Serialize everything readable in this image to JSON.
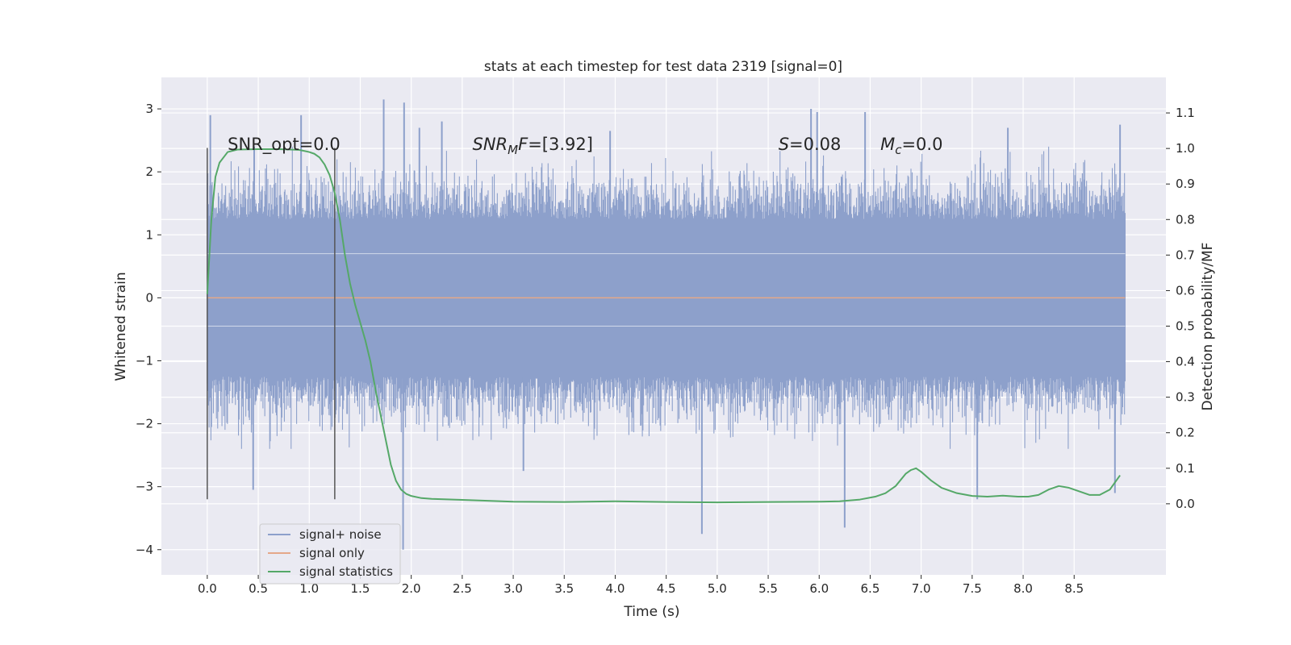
{
  "chart_data": {
    "type": "line",
    "title": "stats at each timestep for test data 2319 [signal=0]",
    "xlabel": "Time (s)",
    "ylabel": "Whitened strain",
    "y2label": "Detection probability/MF",
    "xlim": [
      -0.45,
      9.4
    ],
    "ylim": [
      -4.4,
      3.5
    ],
    "y2lim": [
      -0.2,
      1.2
    ],
    "x_ticks": [
      0.0,
      0.5,
      1.0,
      1.5,
      2.0,
      2.5,
      3.0,
      3.5,
      4.0,
      4.5,
      5.0,
      5.5,
      6.0,
      6.5,
      7.0,
      7.5,
      8.0,
      8.5
    ],
    "x_tick_labels": [
      "0.0",
      "0.5",
      "1.0",
      "1.5",
      "2.0",
      "2.5",
      "3.0",
      "3.5",
      "4.0",
      "4.5",
      "5.0",
      "5.5",
      "6.0",
      "6.5",
      "7.0",
      "7.5",
      "8.0",
      "8.5"
    ],
    "y_ticks": [
      3,
      2,
      1,
      0,
      -1,
      -2,
      -3,
      -4
    ],
    "y_tick_labels": [
      "3",
      "2",
      "1",
      "0",
      "−1",
      "−2",
      "−3",
      "−4"
    ],
    "y2_ticks": [
      1.1,
      1.0,
      0.9,
      0.8,
      0.7,
      0.6,
      0.5,
      0.4,
      0.3,
      0.2,
      0.1,
      0.0
    ],
    "y2_tick_labels": [
      "1.1",
      "1.0",
      "0.9",
      "0.8",
      "0.7",
      "0.6",
      "0.5",
      "0.4",
      "0.3",
      "0.2",
      "0.1",
      "0.0"
    ],
    "grid": true,
    "legend_position": "lower-left",
    "series": [
      {
        "name": "signal+ noise",
        "color": "#8da0cb",
        "x_range": [
          0.0,
          9.0
        ],
        "typical_band": [
          -1.25,
          1.25
        ],
        "peaks": [
          {
            "x": 0.03,
            "y": 2.9
          },
          {
            "x": 0.46,
            "y": 2.4
          },
          {
            "x": 0.45,
            "y": -3.05
          },
          {
            "x": 0.92,
            "y": 2.9
          },
          {
            "x": 1.73,
            "y": 3.15
          },
          {
            "x": 1.92,
            "y": -4.0
          },
          {
            "x": 1.93,
            "y": 3.1
          },
          {
            "x": 2.08,
            "y": 2.7
          },
          {
            "x": 2.3,
            "y": 2.8
          },
          {
            "x": 3.1,
            "y": -2.75
          },
          {
            "x": 3.95,
            "y": 2.65
          },
          {
            "x": 4.85,
            "y": -3.75
          },
          {
            "x": 5.92,
            "y": 3.0
          },
          {
            "x": 5.98,
            "y": 2.95
          },
          {
            "x": 6.25,
            "y": -3.65
          },
          {
            "x": 6.45,
            "y": 2.95
          },
          {
            "x": 7.55,
            "y": -3.2
          },
          {
            "x": 7.85,
            "y": 2.7
          },
          {
            "x": 8.95,
            "y": 2.75
          },
          {
            "x": 8.9,
            "y": -3.1
          }
        ]
      },
      {
        "name": "signal only",
        "color": "#e5a889",
        "x": [
          0.0,
          9.0
        ],
        "y": [
          0.0,
          0.0
        ]
      },
      {
        "name": "signal statistics",
        "color": "#55a868",
        "axis": "right",
        "x": [
          0.0,
          0.04,
          0.08,
          0.12,
          0.2,
          0.3,
          0.5,
          0.7,
          0.9,
          1.0,
          1.05,
          1.1,
          1.15,
          1.2,
          1.25,
          1.3,
          1.35,
          1.4,
          1.45,
          1.5,
          1.55,
          1.6,
          1.65,
          1.7,
          1.75,
          1.8,
          1.85,
          1.9,
          1.95,
          2.0,
          2.1,
          2.2,
          2.5,
          3.0,
          3.5,
          4.0,
          4.5,
          5.0,
          5.5,
          6.0,
          6.2,
          6.4,
          6.55,
          6.65,
          6.75,
          6.85,
          6.9,
          6.95,
          7.0,
          7.1,
          7.2,
          7.35,
          7.5,
          7.65,
          7.8,
          7.95,
          8.05,
          8.15,
          8.25,
          8.35,
          8.45,
          8.55,
          8.65,
          8.75,
          8.85,
          8.95
        ],
        "y": [
          0.59,
          0.8,
          0.92,
          0.96,
          0.99,
          0.997,
          0.998,
          0.998,
          0.996,
          0.99,
          0.985,
          0.975,
          0.955,
          0.925,
          0.875,
          0.8,
          0.7,
          0.62,
          0.56,
          0.51,
          0.46,
          0.4,
          0.32,
          0.25,
          0.18,
          0.11,
          0.065,
          0.04,
          0.028,
          0.022,
          0.016,
          0.014,
          0.011,
          0.006,
          0.005,
          0.007,
          0.005,
          0.004,
          0.005,
          0.006,
          0.007,
          0.012,
          0.02,
          0.03,
          0.05,
          0.085,
          0.095,
          0.1,
          0.09,
          0.065,
          0.045,
          0.03,
          0.022,
          0.02,
          0.023,
          0.02,
          0.02,
          0.025,
          0.04,
          0.05,
          0.045,
          0.035,
          0.025,
          0.025,
          0.04,
          0.08
        ]
      }
    ],
    "vertical_lines": [
      {
        "x": 0.0,
        "y_from": -3.2,
        "y_to": 2.38,
        "color": "#555555"
      },
      {
        "x": 1.25,
        "y_from": -3.2,
        "y_to": 2.38,
        "color": "#555555"
      }
    ],
    "annotations": [
      {
        "x": 0.2,
        "y": 2.35,
        "parts": [
          {
            "t": "SNR_opt=0.0"
          }
        ]
      },
      {
        "x": 2.6,
        "y": 2.35,
        "parts": [
          {
            "t": "SNR",
            "i": true
          },
          {
            "t": "M",
            "i": true,
            "sub": true
          },
          {
            "t": "F",
            "i": true
          },
          {
            "t": "=[3.92]"
          }
        ]
      },
      {
        "x": 5.6,
        "y": 2.35,
        "parts": [
          {
            "t": "S",
            "i": true
          },
          {
            "t": "=0.08"
          }
        ]
      },
      {
        "x": 6.6,
        "y": 2.35,
        "parts": [
          {
            "t": "M",
            "i": true
          },
          {
            "t": "c",
            "i": true,
            "sub": true
          },
          {
            "t": "=0.0"
          }
        ]
      }
    ]
  }
}
